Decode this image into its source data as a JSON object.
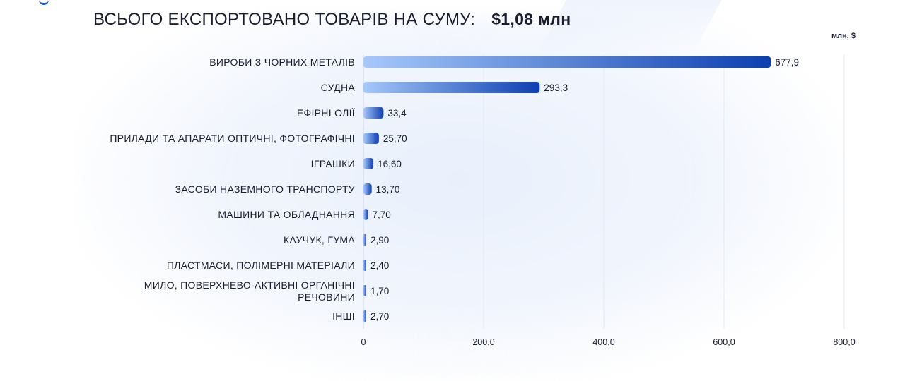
{
  "header": {
    "title": "ВСЬОГО ЕКСПОРТОВАНО ТОВАРІВ НА СУМУ:",
    "total": "$1,08 млн"
  },
  "unit_label": "млн, $",
  "chart_data": {
    "type": "bar",
    "orientation": "horizontal",
    "title": "ВСЬОГО ЕКСПОРТОВАНО ТОВАРІВ НА СУМУ: $1,08 млн",
    "xlabel": "млн, $",
    "ylabel": "",
    "categories": [
      "ВИРОБИ З ЧОРНИХ МЕТАЛІВ",
      "СУДНА",
      "ЕФІРНІ ОЛІЇ",
      "ПРИЛАДИ ТА АПАРАТИ ОПТИЧНІ, ФОТОГРАФІЧНІ",
      "ІГРАШКИ",
      "ЗАСОБИ НАЗЕМНОГО ТРАНСПОРТУ",
      "МАШИНИ ТА ОБЛАДНАННЯ",
      "КАУЧУК, ГУМА",
      "ПЛАСТМАСИ, ПОЛІМЕРНІ МАТЕРІАЛИ",
      "МИЛО, ПОВЕРХНЕВО-АКТИВНІ ОРГАНІЧНІ РЕЧОВИНИ",
      "ІНШІ"
    ],
    "values": [
      677.9,
      293.3,
      33.4,
      25.7,
      16.6,
      13.7,
      7.7,
      2.9,
      2.4,
      1.7,
      2.7
    ],
    "value_labels": [
      "677,9",
      "293,3",
      "33,4",
      "25,70",
      "16,60",
      "13,70",
      "7,70",
      "2,90",
      "2,40",
      "1,70",
      "2,70"
    ],
    "xlim": [
      0,
      800
    ],
    "xticks": [
      0,
      200,
      400,
      600,
      800
    ],
    "xtick_labels": [
      "0",
      "200,0",
      "400,0",
      "600,0",
      "800,0"
    ],
    "grid": true,
    "bar_colors": {
      "start": "#a6c8fb",
      "end": "#0d3fb0"
    }
  }
}
